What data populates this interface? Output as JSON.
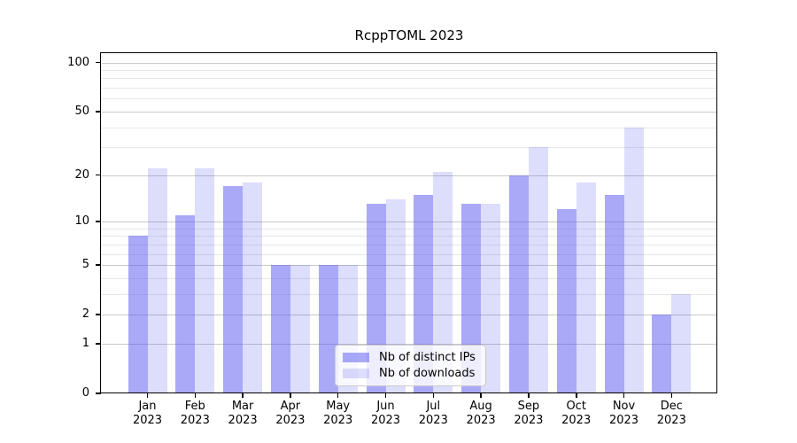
{
  "figure": {
    "title": "RcppTOML 2023"
  },
  "colors": {
    "bar_base": "#5454f2",
    "ips_bar": "rgba(84,84,242,0.5)",
    "downloads_bar": "rgba(84,84,242,0.2)",
    "major_grid": "#c9c9c9",
    "minor_grid": "#e7e7e7",
    "axis": "#000000"
  },
  "chart_data": {
    "type": "bar",
    "title": "RcppTOML 2023",
    "categories": [
      "Jan",
      "Feb",
      "Mar",
      "Apr",
      "May",
      "Jun",
      "Jul",
      "Aug",
      "Sep",
      "Oct",
      "Nov",
      "Dec"
    ],
    "year_label": "2023",
    "series": [
      {
        "name": "Nb of distinct IPs",
        "color": "rgba(84,84,242,0.5)",
        "values": [
          8,
          11,
          17,
          5,
          5,
          13,
          15,
          13,
          20,
          12,
          15,
          2
        ]
      },
      {
        "name": "Nb of downloads",
        "color": "rgba(84,84,242,0.2)",
        "values": [
          22,
          22,
          18,
          5,
          5,
          14,
          21,
          13,
          30,
          18,
          40,
          3
        ]
      }
    ],
    "xlabel": "",
    "ylabel": "",
    "yscale": "log1p",
    "ylim": [
      0,
      100
    ],
    "yticks_major": [
      0,
      1,
      2,
      5,
      10,
      20,
      50,
      100
    ],
    "yticks_minor": [
      3,
      4,
      6,
      7,
      8,
      9,
      30,
      40,
      60,
      70,
      80,
      90
    ],
    "grid": true,
    "legend_position": "lower center"
  }
}
